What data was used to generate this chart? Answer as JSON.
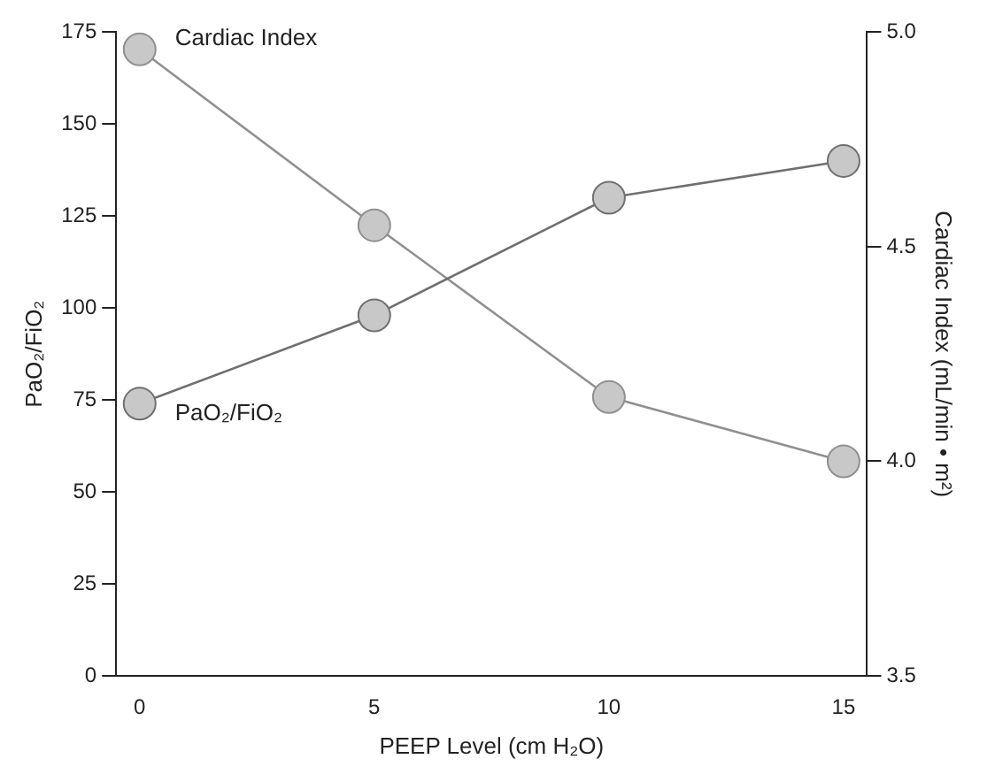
{
  "chart_data": {
    "type": "line",
    "xlabel": "PEEP Level (cm H₂O)",
    "ylabel": "PaO₂/FiO₂",
    "y2label": "Cardiac Index (mL/min • m²)",
    "x": [
      0,
      5,
      10,
      15
    ],
    "series": [
      {
        "name": "PaO₂/FiO₂",
        "color": "#707070",
        "values": [
          74,
          98,
          130,
          140
        ]
      },
      {
        "name": "Cardiac Index",
        "color": "#909090",
        "axis": "y2",
        "values": [
          4.96,
          4.55,
          4.15,
          4.0
        ]
      }
    ],
    "xlim": [
      -0.5,
      15.5
    ],
    "xticks": [
      0,
      5,
      10,
      15
    ],
    "ylim": [
      0,
      175
    ],
    "yticks": [
      0,
      25,
      50,
      75,
      100,
      125,
      150,
      175
    ],
    "y2lim": [
      3.5,
      5.0
    ],
    "y2ticks": [
      3.5,
      {
        "value": 4,
        "label": "4.0"
      },
      4.5,
      {
        "value": 5,
        "label": "5.0"
      }
    ],
    "grid": false,
    "legend": false,
    "marker": "circle",
    "line_style": "solid"
  }
}
